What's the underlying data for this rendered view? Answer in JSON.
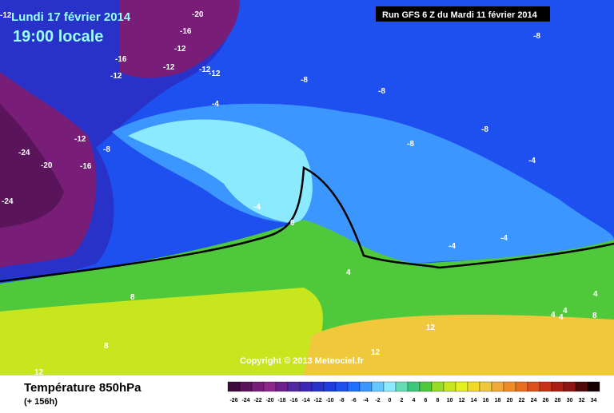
{
  "header": {
    "date": "Lundi 17 février 2014",
    "time": "19:00 locale",
    "run": "Run GFS 6 Z du Mardi 11 février 2014"
  },
  "copyright": "Copyright © 2013 Meteociel.fr",
  "footer": {
    "title": "Température 850hPa",
    "lead": "(+ 156h)"
  },
  "contour_labels": [
    "-12",
    "-20",
    "-16",
    "-16",
    "-12",
    "-12",
    "-12",
    "-12",
    "-12",
    "-8",
    "-8",
    "-4",
    "-12",
    "-8",
    "-24",
    "-20",
    "-16",
    "-24",
    "-8",
    "-8",
    "-8",
    "-4",
    "-4",
    "0",
    "-4",
    "-4",
    "4",
    "8",
    "8",
    "12",
    "4",
    "4",
    "4",
    "4",
    "8",
    "12",
    "12"
  ],
  "scale": {
    "values": [
      -26,
      -24,
      -22,
      -20,
      -18,
      -16,
      -14,
      -12,
      -10,
      -8,
      -6,
      -4,
      -2,
      0,
      2,
      4,
      6,
      8,
      10,
      12,
      14,
      16,
      18,
      20,
      22,
      24,
      26,
      28,
      30,
      32,
      34
    ],
    "colors": [
      "#3c0a3c",
      "#5a145a",
      "#781e78",
      "#8c288c",
      "#6e1e8c",
      "#5028a0",
      "#3c28b4",
      "#2832c8",
      "#1e3cdc",
      "#1e50f0",
      "#1e6eff",
      "#3c96ff",
      "#64c8ff",
      "#8ceaff",
      "#64dcb4",
      "#3cc878",
      "#50c83c",
      "#96dc28",
      "#c8e61e",
      "#e6f01e",
      "#f0dc28",
      "#f0c83c",
      "#f0aa3c",
      "#f08c28",
      "#e66e1e",
      "#dc501e",
      "#c83214",
      "#aa1e14",
      "#8c1414",
      "#500a0a",
      "#140000"
    ]
  }
}
